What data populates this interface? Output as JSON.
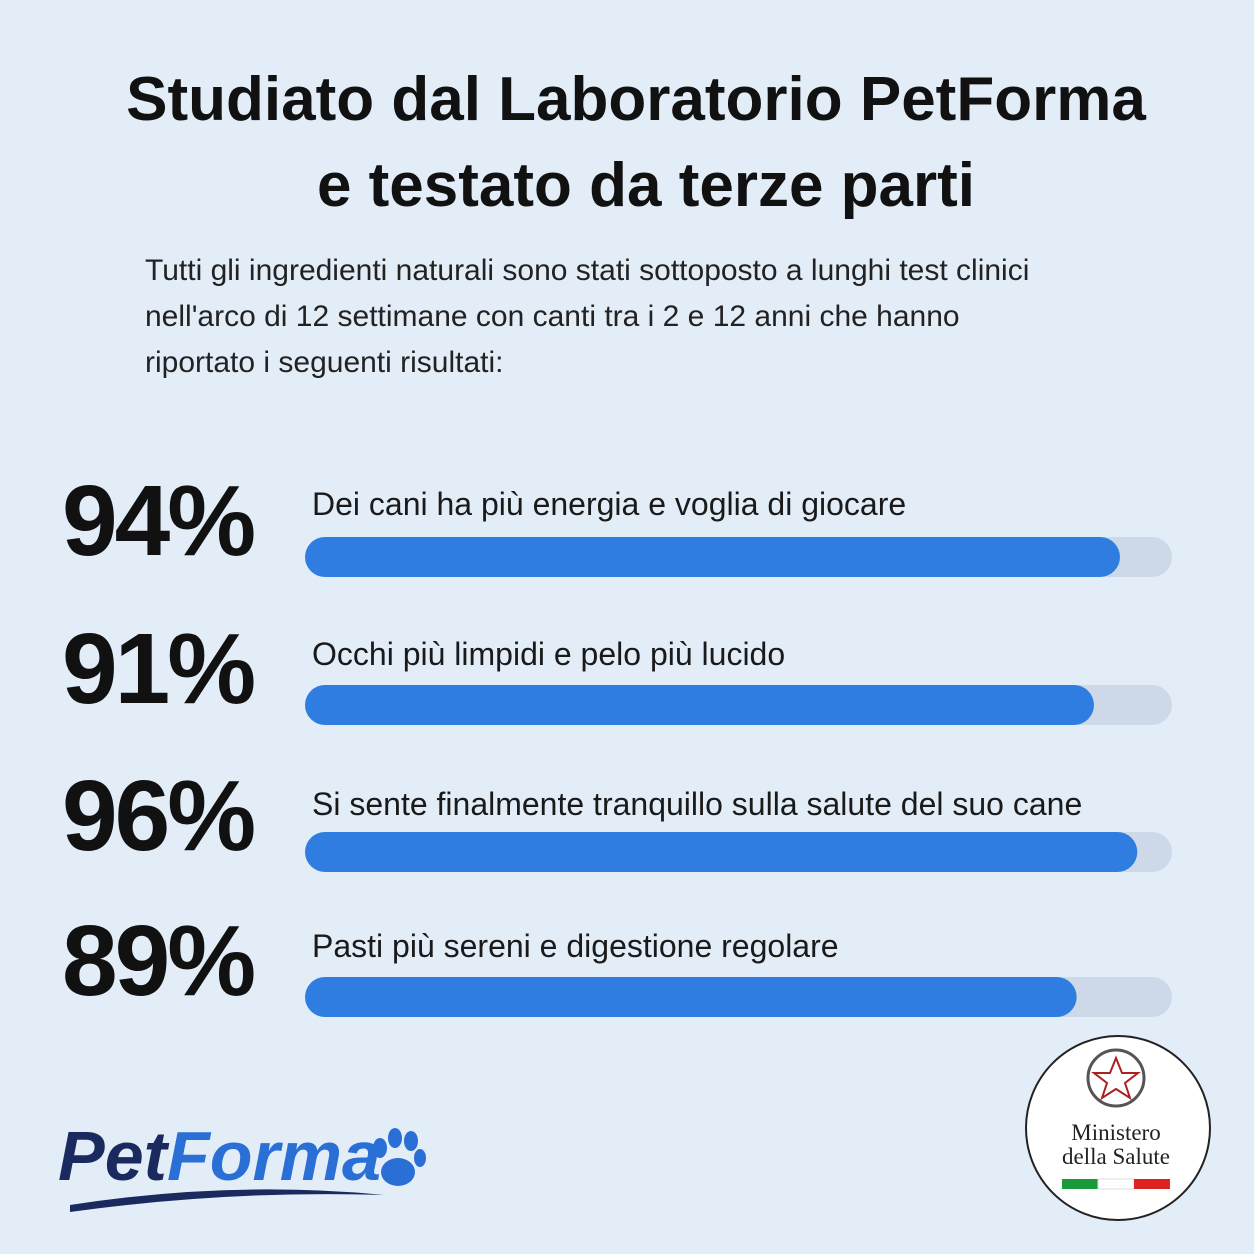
{
  "chart_data": {
    "type": "bar",
    "title": [
      "Studiato dal Laboratorio PetForma",
      "e testato da terze parti"
    ],
    "subtitle": [
      "Tutti gli ingredienti naturali sono stati sottoposto a lunghi test clinici",
      "nell'arco di 12 settimane con canti tra i 2 e 12 anni che hanno",
      "riportato i seguenti risultati:"
    ],
    "categories": [
      "Dei cani ha più energia e voglia di giocare",
      "Occhi più limpidi e pelo più lucido",
      "Si sente finalmente tranquillo sulla salute del suo cane",
      "Pasti più sereni e digestione regolare"
    ],
    "values": [
      94,
      91,
      96,
      89
    ],
    "value_labels": [
      "94%",
      "91%",
      "96%",
      "89%"
    ],
    "xlim": [
      0,
      100
    ],
    "color": "#2f7de1"
  },
  "logo": {
    "first": "Pet",
    "second": "Forma"
  },
  "badge": [
    "Ministero",
    "della Salute"
  ]
}
